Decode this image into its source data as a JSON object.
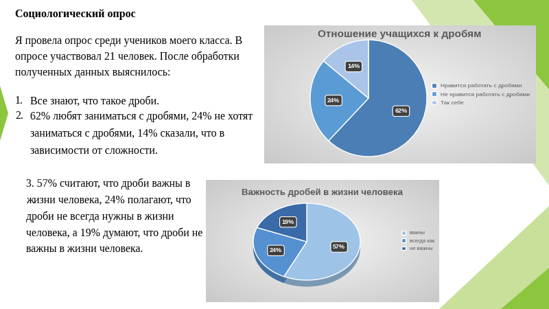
{
  "title": "Социологический опрос",
  "intro": "Я провела опрос среди учеников моего класса. В опросе участвовал 21 человек. После обработки полученных данных выяснилось:",
  "list": [
    {
      "number": "1.",
      "text": "Все знают, что такое дроби."
    },
    {
      "number": "2.",
      "text": "62% любят заниматься с дробями, 24% не хотят заниматься с дробями, 14% сказали, что в зависимости от сложности."
    }
  ],
  "note": "3. 57% считают, что дроби важны в жизни человека, 24% полагают, что дроби не всегда нужны в жизни человека, а 19% думают, что дроби не важны в жизни человека.",
  "chart_data": [
    {
      "type": "pie",
      "title": "Отношение учащихся к дробям",
      "categories": [
        "Нравится работать с дробями",
        "Не нравится работать с дробями",
        "Так себе"
      ],
      "values": [
        62,
        24,
        14
      ],
      "value_labels": [
        "62%",
        "24%",
        "14%"
      ],
      "colors": [
        "#4a7eb5",
        "#5b9bd5",
        "#a9c4e8"
      ],
      "data_labels": true,
      "legend": "right"
    },
    {
      "type": "pie",
      "title": "Важность дробей в жизни человека",
      "categories": [
        "важны",
        "всегда как",
        "не важны"
      ],
      "values": [
        57,
        24,
        19
      ],
      "value_labels": [
        "57%",
        "24%",
        "19%"
      ],
      "colors": [
        "#9dc3e6",
        "#5590d0",
        "#3a6aa8"
      ],
      "data_labels": true,
      "legend": "right"
    }
  ]
}
